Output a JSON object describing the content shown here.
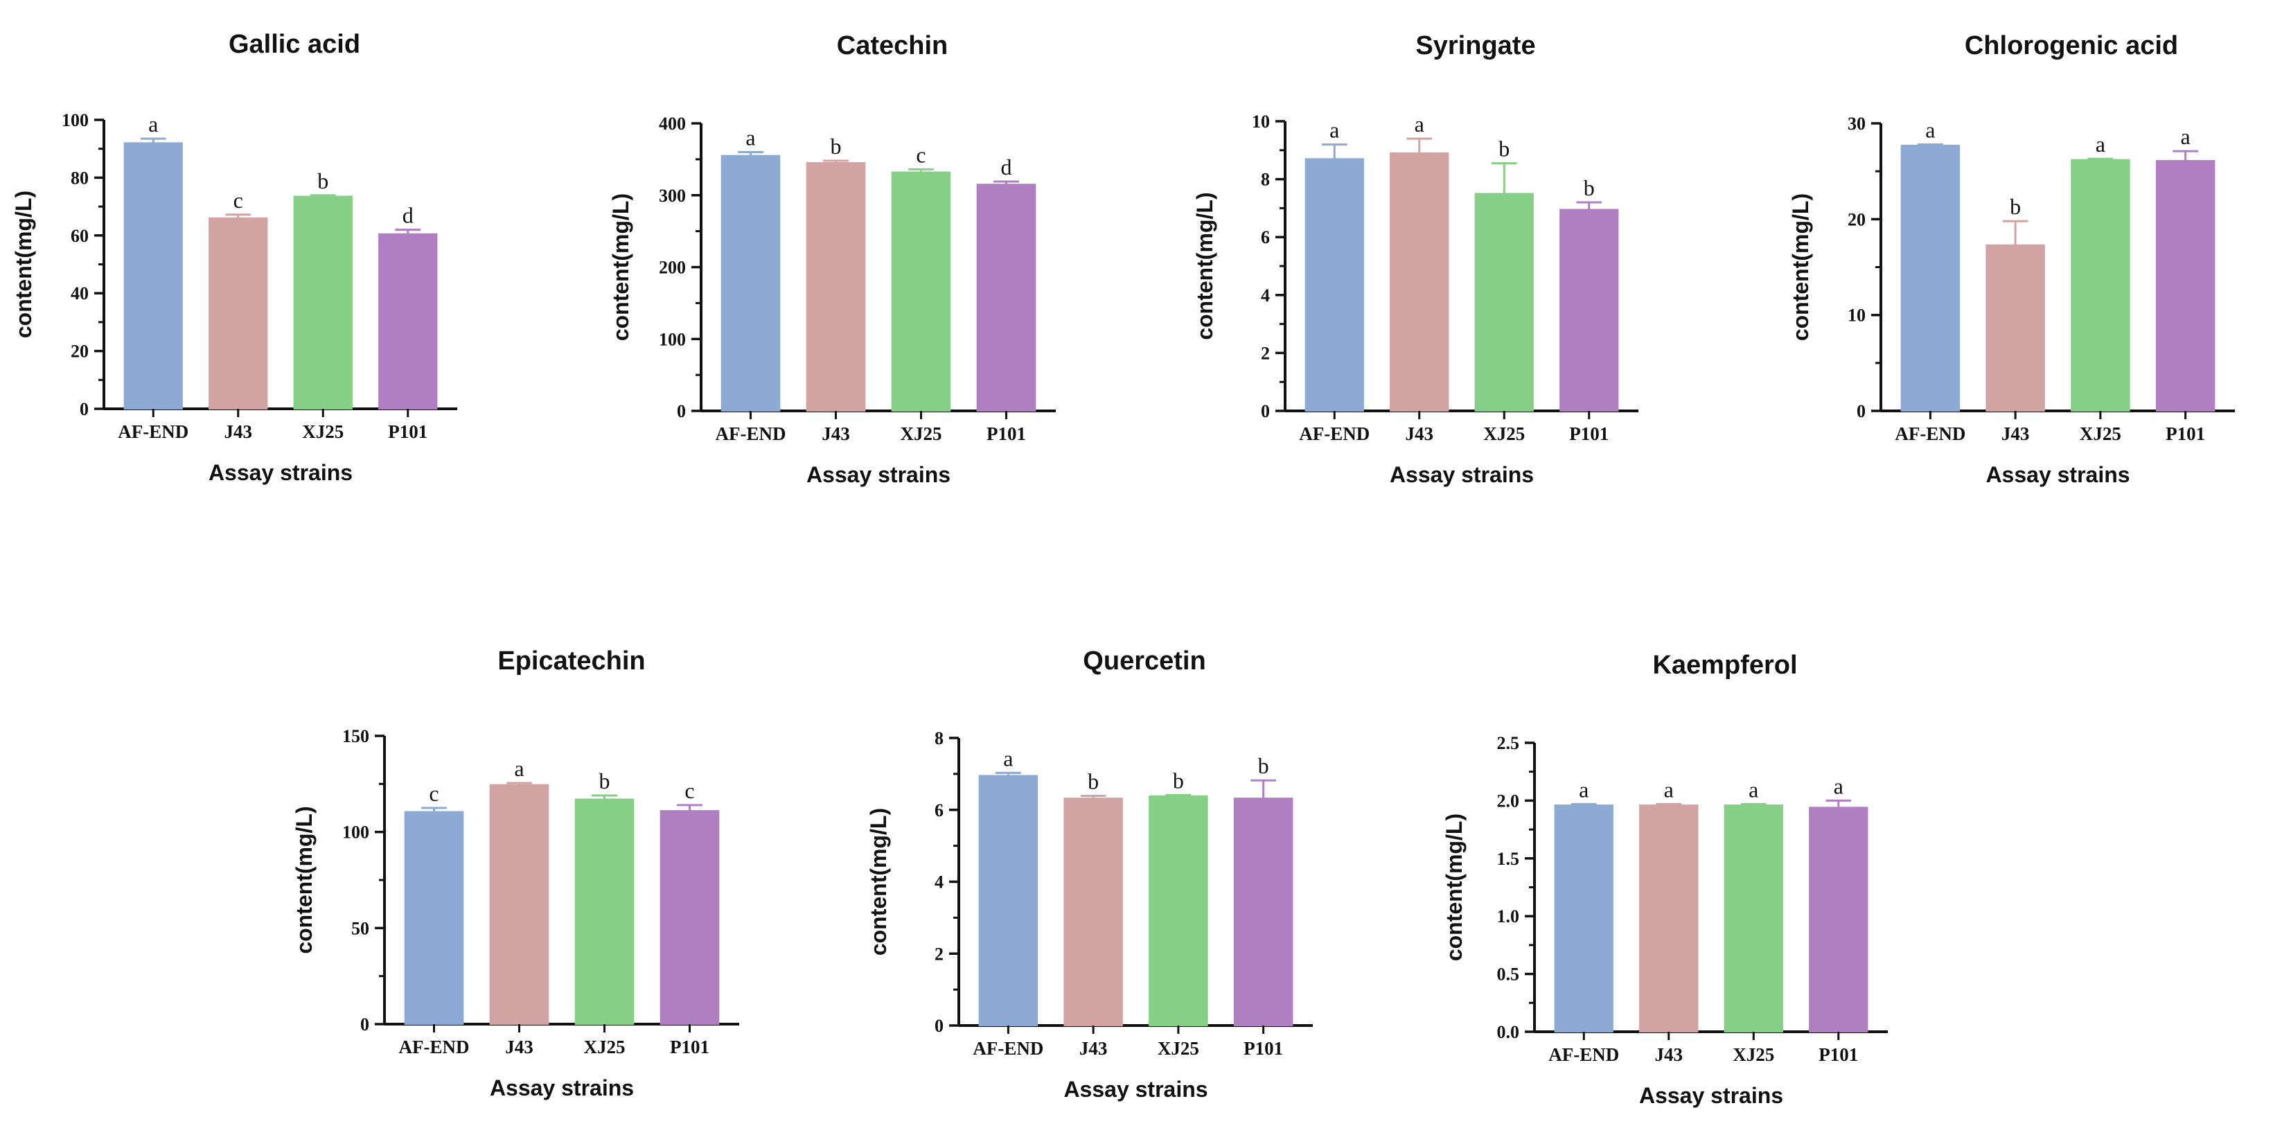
{
  "colors": {
    "AF-END": "#8daad4",
    "J43": "#d1a3a3",
    "XJ25": "#86cf86",
    "P101": "#b07fc2"
  },
  "chart_data": [
    {
      "type": "bar",
      "title": "Gallic acid",
      "xlabel": "Assay strains",
      "ylabel": "content(mg/L)",
      "categories": [
        "AF-END",
        "J43",
        "XJ25",
        "P101"
      ],
      "values": [
        92,
        66,
        73.5,
        60.5
      ],
      "errors": [
        1.5,
        1.2,
        0.4,
        1.5
      ],
      "letters": [
        "a",
        "c",
        "b",
        "d"
      ],
      "ylim": [
        0,
        100
      ],
      "yticks": [
        "0",
        "20",
        "40",
        "60",
        "80",
        "100"
      ]
    },
    {
      "type": "bar",
      "title": "Catechin",
      "xlabel": "Assay strains",
      "ylabel": "content(mg/L)",
      "categories": [
        "AF-END",
        "J43",
        "XJ25",
        "P101"
      ],
      "values": [
        355,
        345,
        332,
        315
      ],
      "errors": [
        5,
        3,
        4,
        4
      ],
      "letters": [
        "a",
        "b",
        "c",
        "d"
      ],
      "ylim": [
        0,
        400
      ],
      "yticks": [
        "0",
        "100",
        "200",
        "300",
        "400"
      ]
    },
    {
      "type": "bar",
      "title": "Syringate",
      "xlabel": "Assay strains",
      "ylabel": "content(mg/L)",
      "categories": [
        "AF-END",
        "J43",
        "XJ25",
        "P101"
      ],
      "values": [
        8.7,
        8.9,
        7.5,
        6.95
      ],
      "errors": [
        0.5,
        0.5,
        1.05,
        0.25
      ],
      "letters": [
        "a",
        "a",
        "b",
        "b"
      ],
      "ylim": [
        0,
        10
      ],
      "yticks": [
        "0",
        "2",
        "4",
        "6",
        "8",
        "10"
      ]
    },
    {
      "type": "bar",
      "title": "Chlorogenic acid",
      "xlabel": "Assay strains",
      "ylabel": "content(mg/L)",
      "categories": [
        "AF-END",
        "J43",
        "XJ25",
        "P101"
      ],
      "values": [
        27.7,
        17.3,
        26.2,
        26.1
      ],
      "errors": [
        0.1,
        2.5,
        0.1,
        1.0
      ],
      "letters": [
        "a",
        "b",
        "a",
        "a"
      ],
      "ylim": [
        0,
        30
      ],
      "yticks": [
        "0",
        "10",
        "20",
        "30"
      ]
    },
    {
      "type": "bar",
      "title": "Epicatechin",
      "xlabel": "Assay strains",
      "ylabel": "content(mg/L)",
      "categories": [
        "AF-END",
        "J43",
        "XJ25",
        "P101"
      ],
      "values": [
        110.5,
        124.5,
        117,
        111
      ],
      "errors": [
        2,
        1,
        2,
        3
      ],
      "letters": [
        "c",
        "a",
        "b",
        "c"
      ],
      "ylim": [
        0,
        150
      ],
      "yticks": [
        "0",
        "50",
        "100",
        "150"
      ]
    },
    {
      "type": "bar",
      "title": "Quercetin",
      "xlabel": "Assay strains",
      "ylabel": "content(mg/L)",
      "categories": [
        "AF-END",
        "J43",
        "XJ25",
        "P101"
      ],
      "values": [
        6.95,
        6.32,
        6.38,
        6.32
      ],
      "errors": [
        0.08,
        0.07,
        0.03,
        0.5
      ],
      "letters": [
        "a",
        "b",
        "b",
        "b"
      ],
      "ylim": [
        0,
        8
      ],
      "yticks": [
        "0",
        "2",
        "4",
        "6",
        "8"
      ]
    },
    {
      "type": "bar",
      "title": "Kaempferol",
      "xlabel": "Assay strains",
      "ylabel": "content(mg/L)",
      "categories": [
        "AF-END",
        "J43",
        "XJ25",
        "P101"
      ],
      "values": [
        1.96,
        1.96,
        1.96,
        1.94
      ],
      "errors": [
        0.01,
        0.01,
        0.01,
        0.06
      ],
      "letters": [
        "a",
        "a",
        "a",
        "a"
      ],
      "ylim": [
        0,
        2.5
      ],
      "yticks": [
        "0.0",
        "0.5",
        "1.0",
        "1.5",
        "2.0",
        "2.5"
      ]
    }
  ]
}
